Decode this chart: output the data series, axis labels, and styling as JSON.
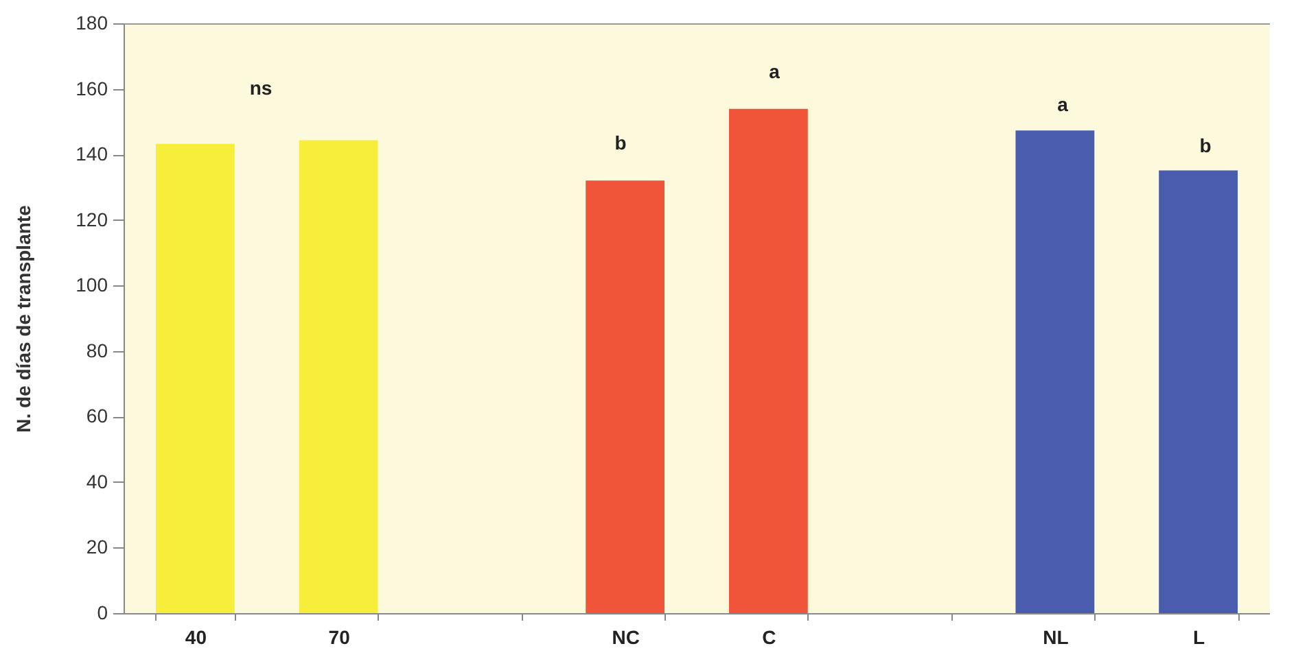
{
  "chart_data": {
    "type": "bar",
    "ylabel": "N. de días de transplante",
    "categories": [
      "40",
      "70",
      null,
      "NC",
      "C",
      null,
      "NL",
      "L"
    ],
    "values": [
      143.2,
      144.3,
      null,
      132,
      153.9,
      null,
      147.3,
      135.1
    ],
    "colors": [
      "#f7ee3c",
      "#f7ee3c",
      null,
      "#f0553a",
      "#f0553a",
      null,
      "#4a5cae",
      "#4a5cae"
    ],
    "ylim": [
      0,
      180
    ],
    "yticks": [
      0,
      20,
      40,
      60,
      80,
      100,
      120,
      140,
      160,
      180
    ],
    "grid": false,
    "annotations": [
      "ns",
      "b",
      "a",
      "a",
      "b"
    ]
  }
}
